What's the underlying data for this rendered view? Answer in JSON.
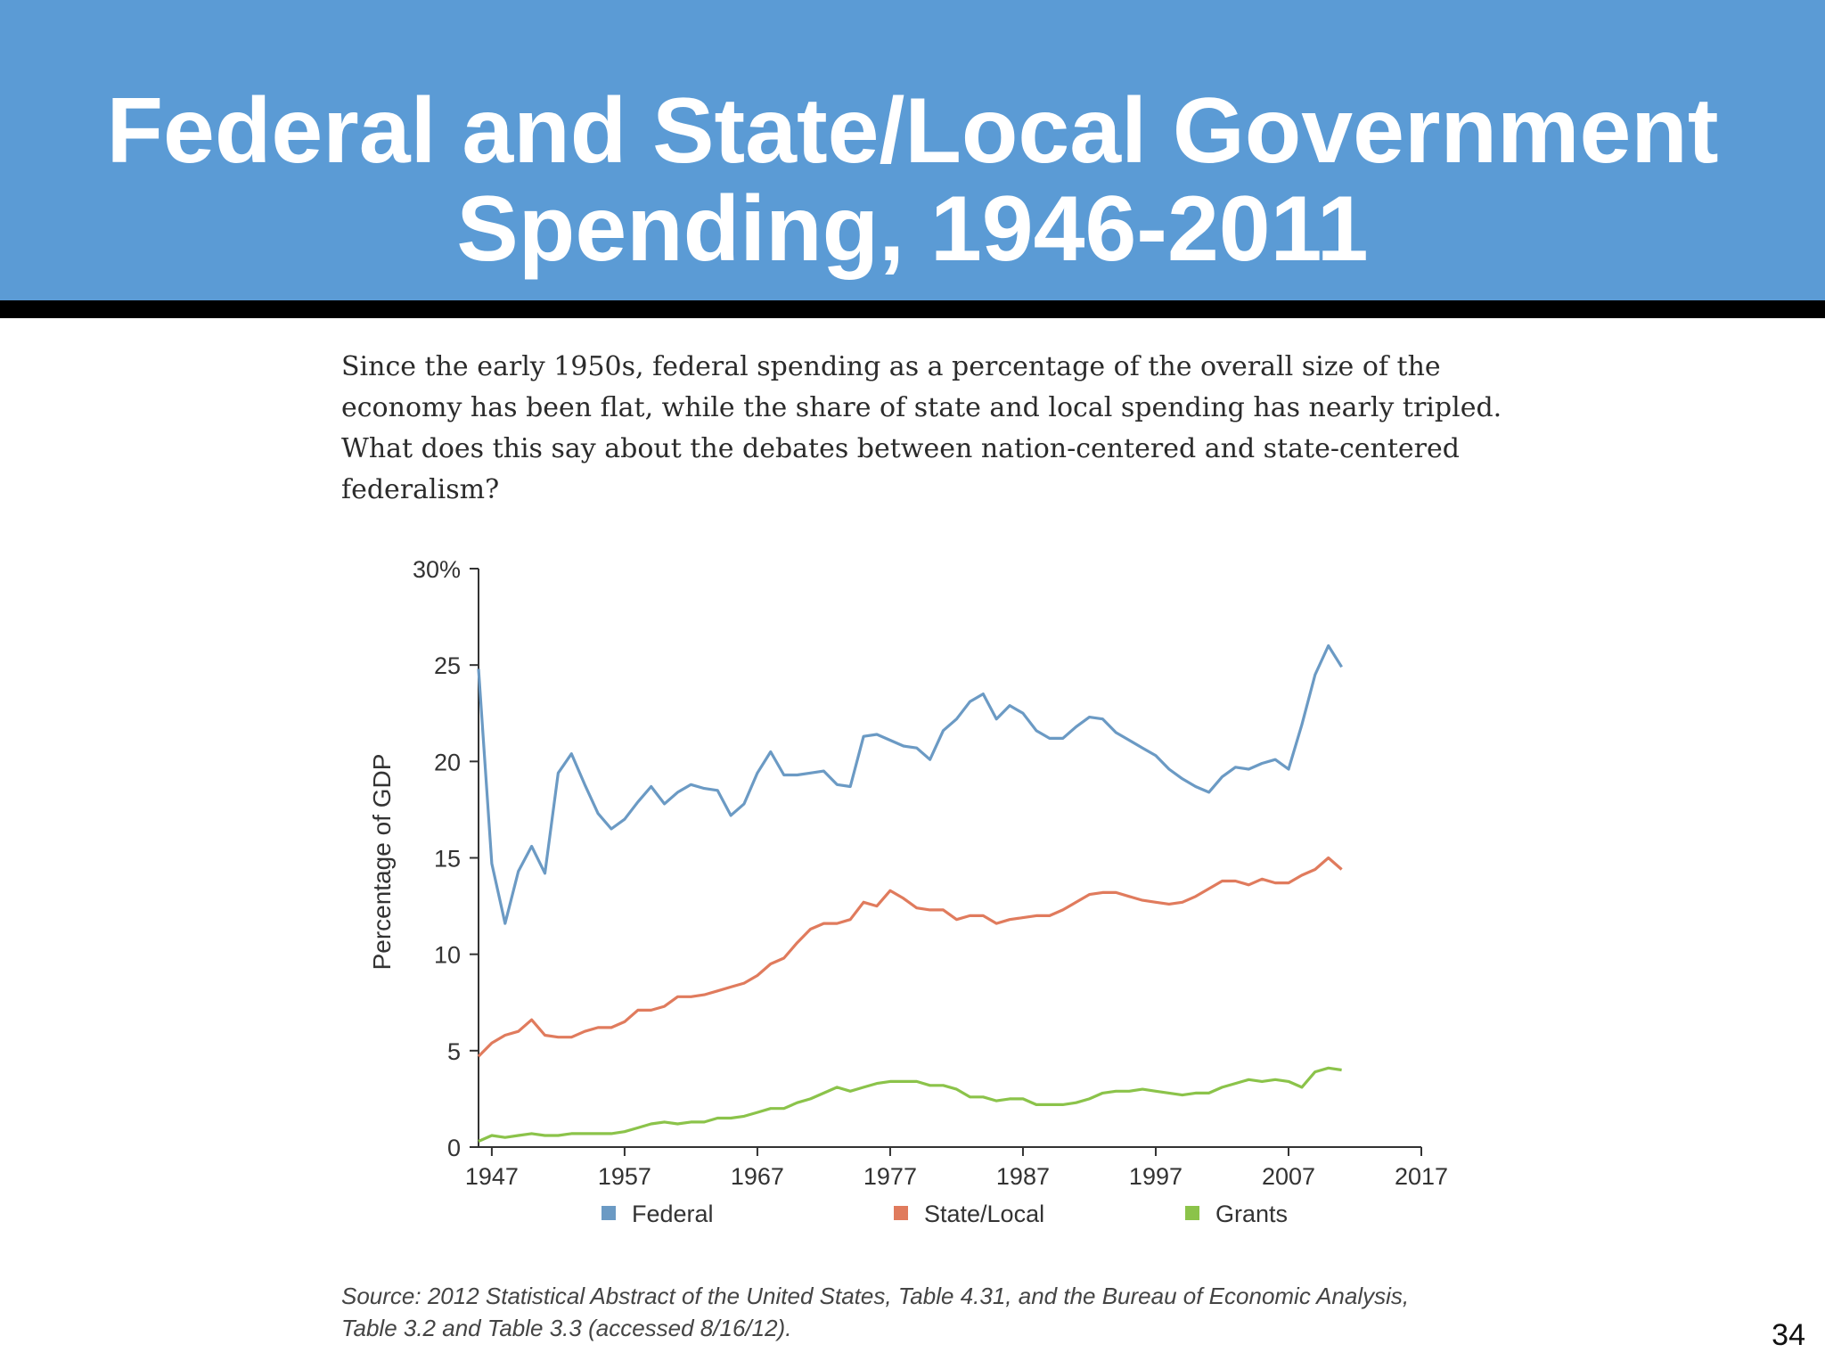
{
  "slide": {
    "title_lines": [
      "Federal and State/Local Government",
      "Spending, 1946-2011"
    ],
    "caption_lines": [
      "Since the early 1950s, federal spending as a percentage of the overall size of the",
      "economy has been flat, while the share of state and local spending has nearly tripled.",
      "What does this say about the debates between nation-centered and state-centered",
      "federalism?"
    ],
    "source_lines": [
      "Source: 2012 Statistical Abstract of the United States, Table 4.31, and the Bureau of Economic Analysis,",
      "Table 3.2 and Table 3.3 (accessed 8/16/12)."
    ],
    "page_number": "34",
    "colors": {
      "header": "#5b9bd5",
      "rule": "#000000"
    }
  },
  "chart_data": {
    "type": "line",
    "title": "",
    "xlabel": "",
    "ylabel": "Percentage of GDP",
    "xlim": [
      1946,
      2017
    ],
    "ylim": [
      0,
      30
    ],
    "x_ticks": [
      1947,
      1957,
      1967,
      1977,
      1987,
      1997,
      2007,
      2017
    ],
    "y_ticks": [
      0,
      5,
      10,
      15,
      20,
      25,
      30
    ],
    "y_tick_labels": [
      "0",
      "5",
      "10",
      "15",
      "20",
      "25",
      "30%"
    ],
    "legend_position": "bottom",
    "x": [
      1946,
      1947,
      1948,
      1949,
      1950,
      1951,
      1952,
      1953,
      1954,
      1955,
      1956,
      1957,
      1958,
      1959,
      1960,
      1961,
      1962,
      1963,
      1964,
      1965,
      1966,
      1967,
      1968,
      1969,
      1970,
      1971,
      1972,
      1973,
      1974,
      1975,
      1976,
      1977,
      1978,
      1979,
      1980,
      1981,
      1982,
      1983,
      1984,
      1985,
      1986,
      1987,
      1988,
      1989,
      1990,
      1991,
      1992,
      1993,
      1994,
      1995,
      1996,
      1997,
      1998,
      1999,
      2000,
      2001,
      2002,
      2003,
      2004,
      2005,
      2006,
      2007,
      2008,
      2009,
      2010,
      2011
    ],
    "series": [
      {
        "name": "Federal",
        "color": "#6b9ac4",
        "values": [
          24.8,
          14.7,
          11.6,
          14.3,
          15.6,
          14.2,
          19.4,
          20.4,
          18.8,
          17.3,
          16.5,
          17.0,
          17.9,
          18.7,
          17.8,
          18.4,
          18.8,
          18.6,
          18.5,
          17.2,
          17.8,
          19.4,
          20.5,
          19.3,
          19.3,
          19.4,
          19.5,
          18.8,
          18.7,
          21.3,
          21.4,
          21.1,
          20.8,
          20.7,
          20.1,
          21.6,
          22.2,
          23.1,
          23.5,
          22.2,
          22.9,
          22.5,
          21.6,
          21.2,
          21.2,
          21.8,
          22.3,
          22.2,
          21.5,
          21.1,
          20.7,
          20.3,
          19.6,
          19.1,
          18.7,
          18.4,
          19.2,
          19.7,
          19.6,
          19.9,
          20.1,
          19.6,
          21.9,
          24.5,
          26.0,
          24.9
        ]
      },
      {
        "name": "State/Local",
        "color": "#e07b5d",
        "values": [
          4.7,
          5.4,
          5.8,
          6.0,
          6.6,
          5.8,
          5.7,
          5.7,
          6.0,
          6.2,
          6.2,
          6.5,
          7.1,
          7.1,
          7.3,
          7.8,
          7.8,
          7.9,
          8.1,
          8.3,
          8.5,
          8.9,
          9.5,
          9.8,
          10.6,
          11.3,
          11.6,
          11.6,
          11.8,
          12.7,
          12.5,
          13.3,
          12.9,
          12.4,
          12.3,
          12.3,
          11.8,
          12.0,
          12.0,
          11.6,
          11.8,
          11.9,
          12.0,
          12.0,
          12.3,
          12.7,
          13.1,
          13.2,
          13.2,
          13.0,
          12.8,
          12.7,
          12.6,
          12.7,
          13.0,
          13.4,
          13.8,
          13.8,
          13.6,
          13.9,
          13.7,
          13.7,
          14.1,
          14.4,
          15.0,
          14.4
        ]
      },
      {
        "name": "Grants",
        "color": "#8bc34a",
        "values": [
          0.3,
          0.6,
          0.5,
          0.6,
          0.7,
          0.6,
          0.6,
          0.7,
          0.7,
          0.7,
          0.7,
          0.8,
          1.0,
          1.2,
          1.3,
          1.2,
          1.3,
          1.3,
          1.5,
          1.5,
          1.6,
          1.8,
          2.0,
          2.0,
          2.3,
          2.5,
          2.8,
          3.1,
          2.9,
          3.1,
          3.3,
          3.4,
          3.4,
          3.4,
          3.2,
          3.2,
          3.0,
          2.6,
          2.6,
          2.4,
          2.5,
          2.5,
          2.2,
          2.2,
          2.2,
          2.3,
          2.5,
          2.8,
          2.9,
          2.9,
          3.0,
          2.9,
          2.8,
          2.7,
          2.8,
          2.8,
          3.1,
          3.3,
          3.5,
          3.4,
          3.5,
          3.4,
          3.1,
          3.9,
          4.1,
          4.0
        ]
      }
    ]
  }
}
